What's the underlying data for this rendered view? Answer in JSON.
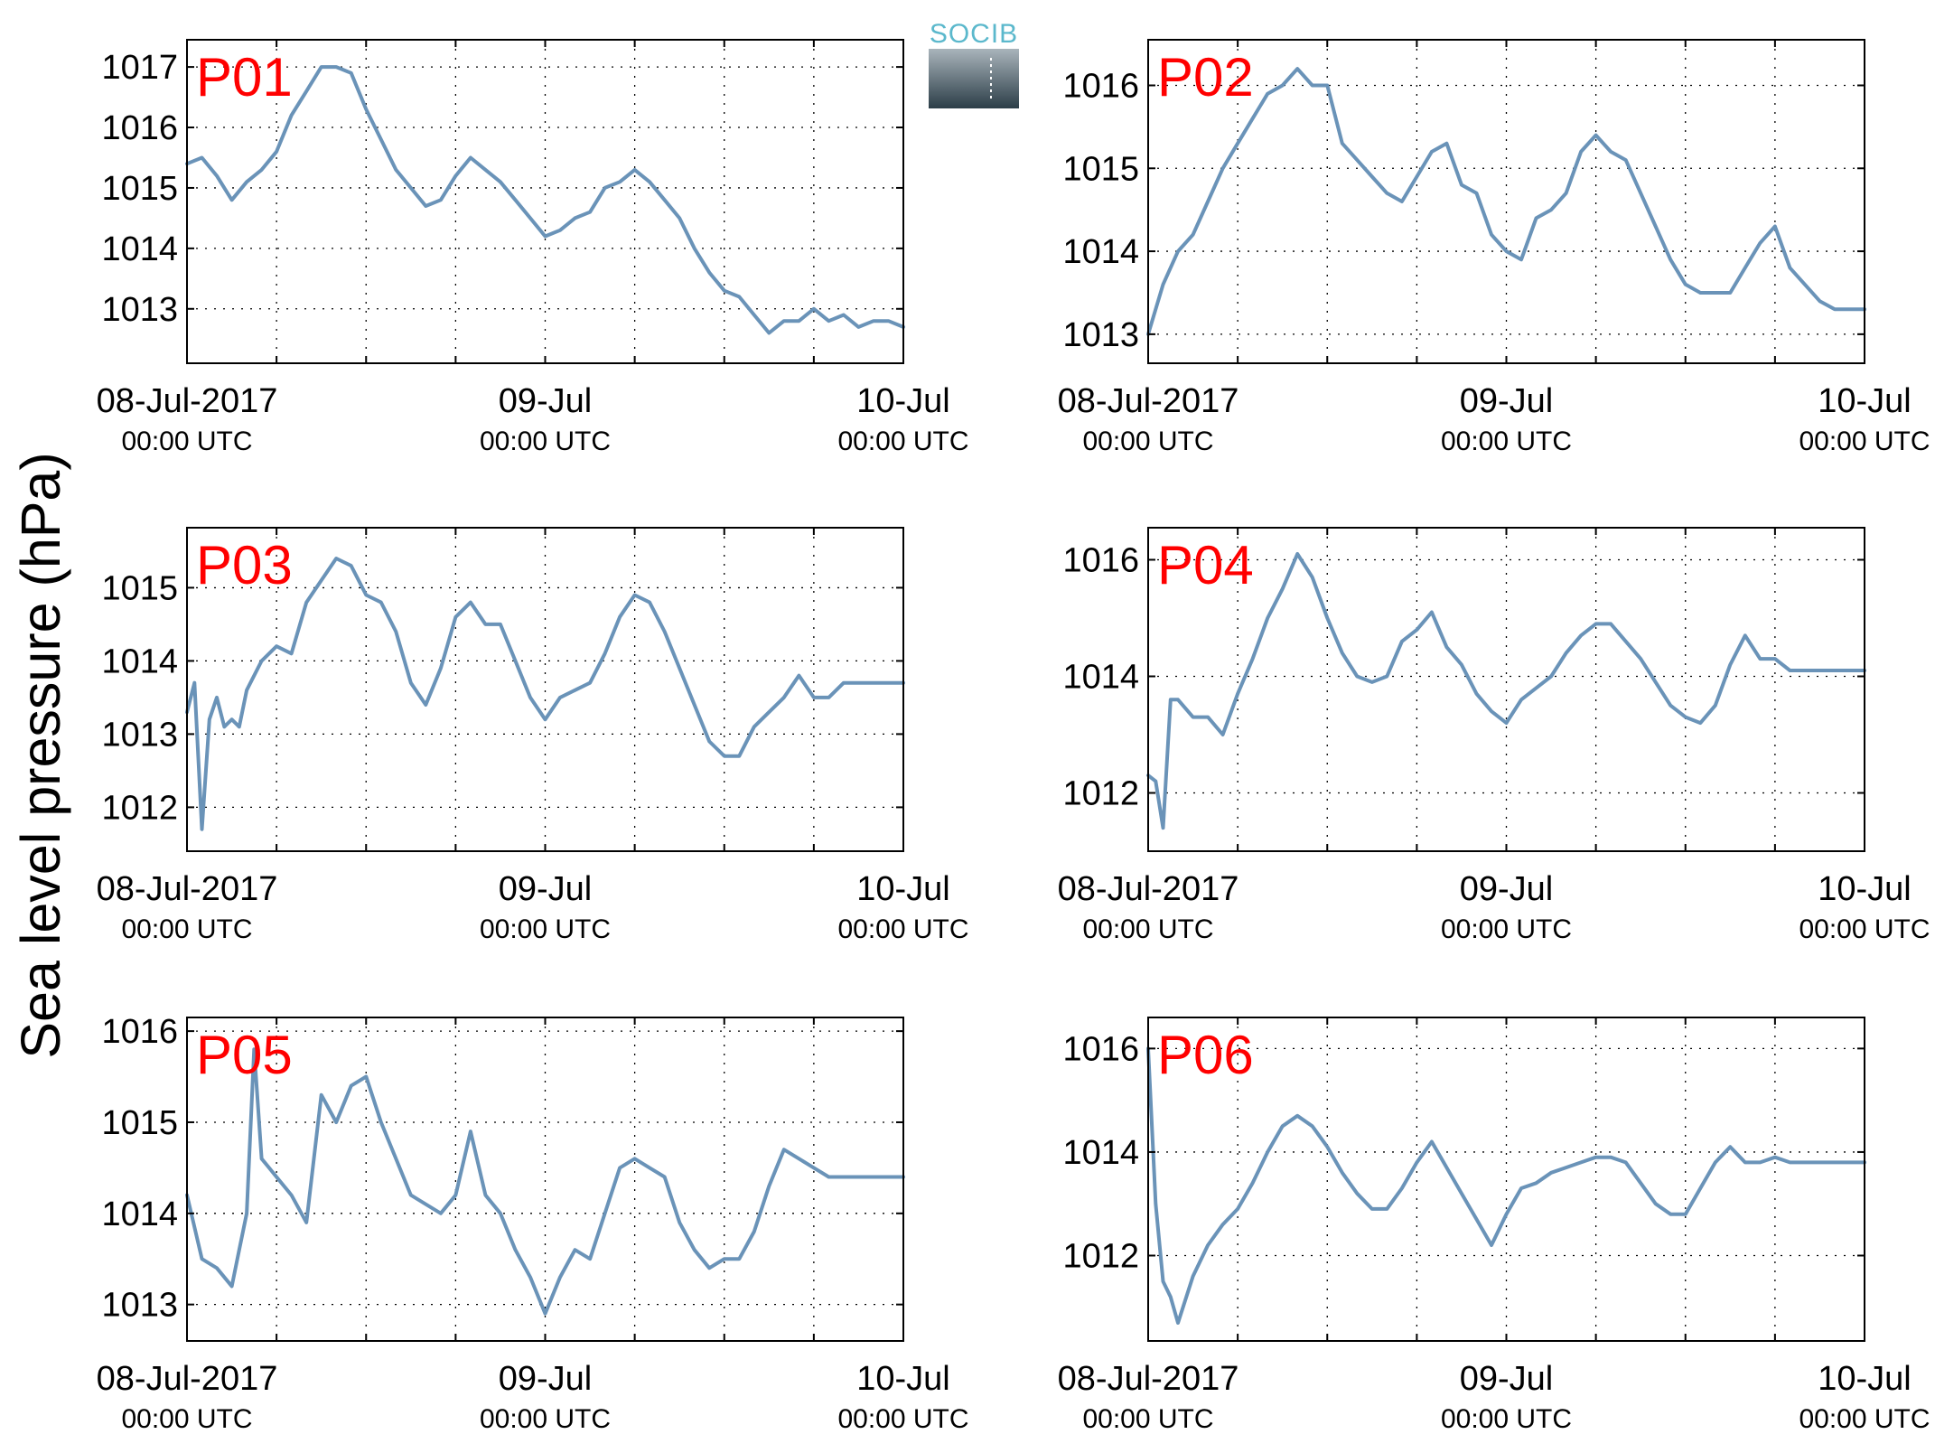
{
  "figure": {
    "ylabel": "Sea level pressure (hPa)",
    "logo": {
      "text": "SOCIB",
      "color_top": "#a9b4bb",
      "color_bottom": "#2c3e48",
      "text_color": "#5bb8cc"
    },
    "line_color": "#6a93b8",
    "label_color": "#ff0000"
  },
  "chart_data": [
    {
      "type": "line",
      "label": "P01",
      "xlabel": "",
      "ylabel": "",
      "xlim": [
        "2017-07-08T00:00",
        "2017-07-10T00:00"
      ],
      "ylim": [
        1012.1,
        1017.45
      ],
      "yticks": [
        1013,
        1014,
        1015,
        1016,
        1017
      ],
      "xticks": [
        {
          "at": "2017-07-08T00:00",
          "line1": "08-Jul-2017",
          "line2": "00:00 UTC"
        },
        {
          "at": "2017-07-09T00:00",
          "line1": "09-Jul",
          "line2": "00:00 UTC"
        },
        {
          "at": "2017-07-10T00:00",
          "line1": "10-Jul",
          "line2": "00:00 UTC"
        }
      ],
      "grid": true,
      "series": [
        {
          "x_hours": [
            0,
            1,
            2,
            3,
            4,
            5,
            6,
            7,
            8,
            9,
            10,
            11,
            12,
            13,
            14,
            15,
            16,
            17,
            18,
            19,
            20,
            21,
            22,
            23,
            24,
            25,
            26,
            27,
            28,
            29,
            30,
            31,
            32,
            33,
            34,
            35,
            36,
            37,
            38,
            39,
            40,
            41,
            42,
            43,
            44,
            45,
            46,
            47,
            48
          ],
          "values": [
            1015.4,
            1015.5,
            1015.2,
            1014.8,
            1015.1,
            1015.3,
            1015.6,
            1016.2,
            1016.6,
            1017.0,
            1017.0,
            1016.9,
            1016.3,
            1015.8,
            1015.3,
            1015.0,
            1014.7,
            1014.8,
            1015.2,
            1015.5,
            1015.3,
            1015.1,
            1014.8,
            1014.5,
            1014.2,
            1014.3,
            1014.5,
            1014.6,
            1015.0,
            1015.1,
            1015.3,
            1015.1,
            1014.8,
            1014.5,
            1014.0,
            1013.6,
            1013.3,
            1013.2,
            1012.9,
            1012.6,
            1012.8,
            1012.8,
            1013.0,
            1012.8,
            1012.9,
            1012.7,
            1012.8,
            1012.8,
            1012.7
          ]
        }
      ]
    },
    {
      "type": "line",
      "label": "P02",
      "xlabel": "",
      "ylabel": "",
      "xlim": [
        "2017-07-08T00:00",
        "2017-07-10T00:00"
      ],
      "ylim": [
        1012.65,
        1016.55
      ],
      "yticks": [
        1013,
        1014,
        1015,
        1016
      ],
      "xticks": [
        {
          "at": "2017-07-08T00:00",
          "line1": "08-Jul-2017",
          "line2": "00:00 UTC"
        },
        {
          "at": "2017-07-09T00:00",
          "line1": "09-Jul",
          "line2": "00:00 UTC"
        },
        {
          "at": "2017-07-10T00:00",
          "line1": "10-Jul",
          "line2": "00:00 UTC"
        }
      ],
      "grid": true,
      "series": [
        {
          "x_hours": [
            0,
            1,
            2,
            3,
            4,
            5,
            6,
            7,
            8,
            9,
            10,
            11,
            12,
            13,
            14,
            15,
            16,
            17,
            18,
            19,
            20,
            21,
            22,
            23,
            24,
            25,
            26,
            27,
            28,
            29,
            30,
            31,
            32,
            33,
            34,
            35,
            36,
            37,
            38,
            39,
            40,
            41,
            42,
            43,
            44,
            45,
            46,
            47,
            48
          ],
          "values": [
            1013.0,
            1013.6,
            1014.0,
            1014.2,
            1014.6,
            1015.0,
            1015.3,
            1015.6,
            1015.9,
            1016.0,
            1016.2,
            1016.0,
            1016.0,
            1015.3,
            1015.1,
            1014.9,
            1014.7,
            1014.6,
            1014.9,
            1015.2,
            1015.3,
            1014.8,
            1014.7,
            1014.2,
            1014.0,
            1013.9,
            1014.4,
            1014.5,
            1014.7,
            1015.2,
            1015.4,
            1015.2,
            1015.1,
            1014.7,
            1014.3,
            1013.9,
            1013.6,
            1013.5,
            1013.5,
            1013.5,
            1013.8,
            1014.1,
            1014.3,
            1013.8,
            1013.6,
            1013.4,
            1013.3,
            1013.3,
            1013.3
          ]
        }
      ]
    },
    {
      "type": "line",
      "label": "P03",
      "xlabel": "",
      "ylabel": "",
      "xlim": [
        "2017-07-08T00:00",
        "2017-07-10T00:00"
      ],
      "ylim": [
        1011.4,
        1015.82
      ],
      "yticks": [
        1012,
        1013,
        1014,
        1015
      ],
      "xticks": [
        {
          "at": "2017-07-08T00:00",
          "line1": "08-Jul-2017",
          "line2": "00:00 UTC"
        },
        {
          "at": "2017-07-09T00:00",
          "line1": "09-Jul",
          "line2": "00:00 UTC"
        },
        {
          "at": "2017-07-10T00:00",
          "line1": "10-Jul",
          "line2": "00:00 UTC"
        }
      ],
      "grid": true,
      "series": [
        {
          "x_hours": [
            0,
            0.5,
            1,
            1.5,
            2,
            2.5,
            3,
            3.5,
            4,
            5,
            6,
            7,
            8,
            9,
            10,
            11,
            12,
            13,
            14,
            15,
            16,
            17,
            18,
            19,
            20,
            21,
            22,
            23,
            24,
            25,
            26,
            27,
            28,
            29,
            30,
            31,
            32,
            33,
            34,
            35,
            36,
            37,
            38,
            39,
            40,
            41,
            42,
            43,
            44,
            45,
            46,
            47,
            48
          ],
          "values": [
            1013.3,
            1013.7,
            1011.7,
            1013.2,
            1013.5,
            1013.1,
            1013.2,
            1013.1,
            1013.6,
            1014.0,
            1014.2,
            1014.1,
            1014.8,
            1015.1,
            1015.4,
            1015.3,
            1014.9,
            1014.8,
            1014.4,
            1013.7,
            1013.4,
            1013.9,
            1014.6,
            1014.8,
            1014.5,
            1014.5,
            1014.0,
            1013.5,
            1013.2,
            1013.5,
            1013.6,
            1013.7,
            1014.1,
            1014.6,
            1014.9,
            1014.8,
            1014.4,
            1013.9,
            1013.4,
            1012.9,
            1012.7,
            1012.7,
            1013.1,
            1013.3,
            1013.5,
            1013.8,
            1013.5,
            1013.5,
            1013.7,
            1013.7,
            1013.7,
            1013.7,
            1013.7
          ]
        }
      ]
    },
    {
      "type": "line",
      "label": "P04",
      "xlabel": "",
      "ylabel": "",
      "xlim": [
        "2017-07-08T00:00",
        "2017-07-10T00:00"
      ],
      "ylim": [
        1011.0,
        1016.55
      ],
      "yticks": [
        1012,
        1014,
        1016
      ],
      "xticks": [
        {
          "at": "2017-07-08T00:00",
          "line1": "08-Jul-2017",
          "line2": "00:00 UTC"
        },
        {
          "at": "2017-07-09T00:00",
          "line1": "09-Jul",
          "line2": "00:00 UTC"
        },
        {
          "at": "2017-07-10T00:00",
          "line1": "10-Jul",
          "line2": "00:00 UTC"
        }
      ],
      "grid": true,
      "series": [
        {
          "x_hours": [
            0,
            0.5,
            1,
            1.5,
            2,
            3,
            4,
            5,
            6,
            7,
            8,
            9,
            10,
            11,
            12,
            13,
            14,
            15,
            16,
            17,
            18,
            19,
            20,
            21,
            22,
            23,
            24,
            25,
            26,
            27,
            28,
            29,
            30,
            31,
            32,
            33,
            34,
            35,
            36,
            37,
            38,
            39,
            40,
            41,
            42,
            43,
            44,
            45,
            46,
            47,
            48
          ],
          "values": [
            1012.3,
            1012.2,
            1011.4,
            1013.6,
            1013.6,
            1013.3,
            1013.3,
            1013.0,
            1013.7,
            1014.3,
            1015.0,
            1015.5,
            1016.1,
            1015.7,
            1015.0,
            1014.4,
            1014.0,
            1013.9,
            1014.0,
            1014.6,
            1014.8,
            1015.1,
            1014.5,
            1014.2,
            1013.7,
            1013.4,
            1013.2,
            1013.6,
            1013.8,
            1014.0,
            1014.4,
            1014.7,
            1014.9,
            1014.9,
            1014.6,
            1014.3,
            1013.9,
            1013.5,
            1013.3,
            1013.2,
            1013.5,
            1014.2,
            1014.7,
            1014.3,
            1014.3,
            1014.1,
            1014.1,
            1014.1,
            1014.1,
            1014.1,
            1014.1
          ]
        }
      ]
    },
    {
      "type": "line",
      "label": "P05",
      "xlabel": "",
      "ylabel": "",
      "xlim": [
        "2017-07-08T00:00",
        "2017-07-10T00:00"
      ],
      "ylim": [
        1012.6,
        1016.15
      ],
      "yticks": [
        1013,
        1014,
        1015,
        1016
      ],
      "xticks": [
        {
          "at": "2017-07-08T00:00",
          "line1": "08-Jul-2017",
          "line2": "00:00 UTC"
        },
        {
          "at": "2017-07-09T00:00",
          "line1": "09-Jul",
          "line2": "00:00 UTC"
        },
        {
          "at": "2017-07-10T00:00",
          "line1": "10-Jul",
          "line2": "00:00 UTC"
        }
      ],
      "grid": true,
      "series": [
        {
          "x_hours": [
            0,
            1,
            2,
            3,
            3.5,
            4,
            4.5,
            5,
            5.5,
            6,
            7,
            8,
            9,
            10,
            11,
            12,
            13,
            14,
            15,
            16,
            17,
            18,
            19,
            20,
            21,
            22,
            23,
            24,
            25,
            26,
            27,
            28,
            29,
            30,
            31,
            32,
            33,
            34,
            35,
            36,
            37,
            38,
            39,
            40,
            41,
            42,
            43,
            44,
            45,
            46,
            47,
            48
          ],
          "values": [
            1014.2,
            1013.5,
            1013.4,
            1013.2,
            1013.6,
            1014.0,
            1015.8,
            1014.6,
            1014.5,
            1014.4,
            1014.2,
            1013.9,
            1015.3,
            1015.0,
            1015.4,
            1015.5,
            1015.0,
            1014.6,
            1014.2,
            1014.1,
            1014.0,
            1014.2,
            1014.9,
            1014.2,
            1014.0,
            1013.6,
            1013.3,
            1012.9,
            1013.3,
            1013.6,
            1013.5,
            1014.0,
            1014.5,
            1014.6,
            1014.5,
            1014.4,
            1013.9,
            1013.6,
            1013.4,
            1013.5,
            1013.5,
            1013.8,
            1014.3,
            1014.7,
            1014.6,
            1014.5,
            1014.4,
            1014.4,
            1014.4,
            1014.4,
            1014.4,
            1014.4
          ]
        }
      ]
    },
    {
      "type": "line",
      "label": "P06",
      "xlabel": "",
      "ylabel": "",
      "xlim": [
        "2017-07-08T00:00",
        "2017-07-10T00:00"
      ],
      "ylim": [
        1010.35,
        1016.6
      ],
      "yticks": [
        1012,
        1014,
        1016
      ],
      "xticks": [
        {
          "at": "2017-07-08T00:00",
          "line1": "08-Jul-2017",
          "line2": "00:00 UTC"
        },
        {
          "at": "2017-07-09T00:00",
          "line1": "09-Jul",
          "line2": "00:00 UTC"
        },
        {
          "at": "2017-07-10T00:00",
          "line1": "10-Jul",
          "line2": "00:00 UTC"
        }
      ],
      "grid": true,
      "series": [
        {
          "x_hours": [
            0,
            0.5,
            1,
            1.5,
            2,
            3,
            4,
            5,
            6,
            7,
            8,
            9,
            10,
            11,
            12,
            13,
            14,
            15,
            16,
            17,
            18,
            19,
            20,
            21,
            22,
            23,
            24,
            25,
            26,
            27,
            28,
            29,
            30,
            31,
            32,
            33,
            34,
            35,
            36,
            37,
            38,
            39,
            40,
            41,
            42,
            43,
            44,
            45,
            46,
            47,
            48
          ],
          "values": [
            1016.0,
            1013.0,
            1011.5,
            1011.2,
            1010.7,
            1011.6,
            1012.2,
            1012.6,
            1012.9,
            1013.4,
            1014.0,
            1014.5,
            1014.7,
            1014.5,
            1014.1,
            1013.6,
            1013.2,
            1012.9,
            1012.9,
            1013.3,
            1013.8,
            1014.2,
            1013.7,
            1013.2,
            1012.7,
            1012.2,
            1012.8,
            1013.3,
            1013.4,
            1013.6,
            1013.7,
            1013.8,
            1013.9,
            1013.9,
            1013.8,
            1013.4,
            1013.0,
            1012.8,
            1012.8,
            1013.3,
            1013.8,
            1014.1,
            1013.8,
            1013.8,
            1013.9,
            1013.8,
            1013.8,
            1013.8,
            1013.8,
            1013.8,
            1013.8
          ]
        }
      ]
    }
  ]
}
